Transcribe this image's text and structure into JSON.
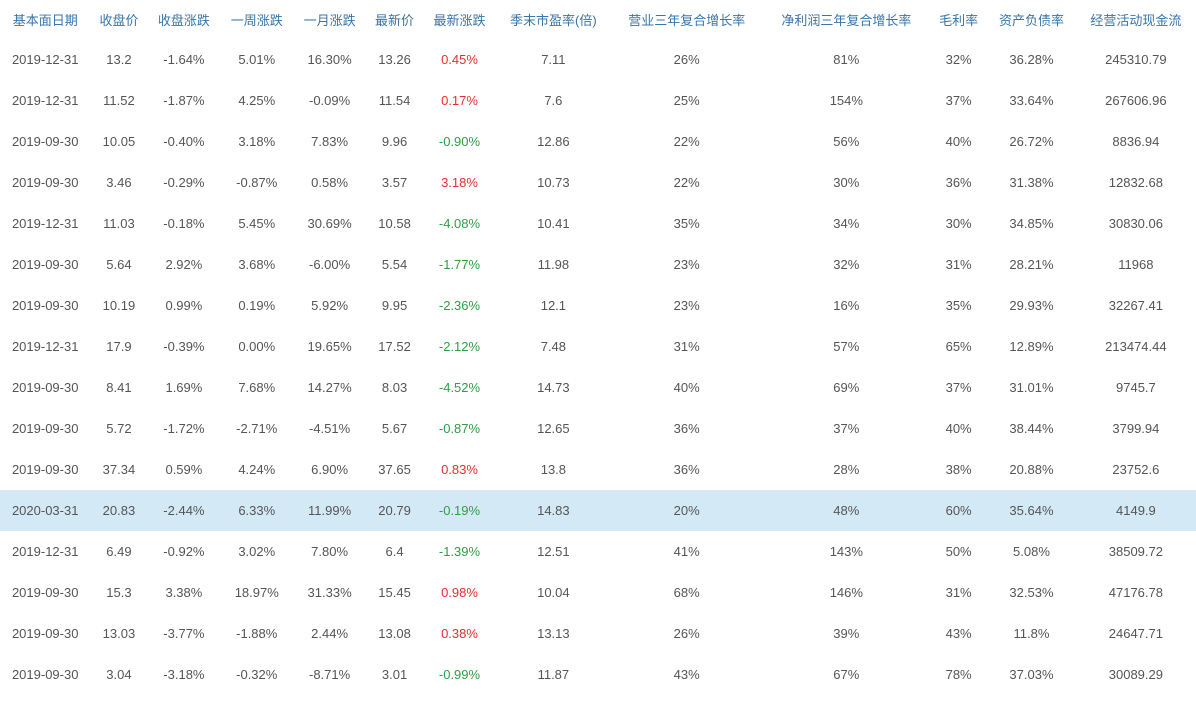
{
  "table": {
    "columns": [
      {
        "key": "date",
        "label": "基本面日期",
        "type": "text"
      },
      {
        "key": "close",
        "label": "收盘价",
        "type": "number"
      },
      {
        "key": "close_chg",
        "label": "收盘涨跌",
        "type": "percent"
      },
      {
        "key": "week_chg",
        "label": "一周涨跌",
        "type": "percent"
      },
      {
        "key": "month_chg",
        "label": "一月涨跌",
        "type": "percent"
      },
      {
        "key": "latest",
        "label": "最新价",
        "type": "number"
      },
      {
        "key": "latest_chg",
        "label": "最新涨跌",
        "type": "percent_colored"
      },
      {
        "key": "pe",
        "label": "季末市盈率(倍)",
        "type": "number"
      },
      {
        "key": "rev_growth",
        "label": "营业三年复合增长率",
        "type": "simple_percent"
      },
      {
        "key": "profit_growth",
        "label": "净利润三年复合增长率",
        "type": "simple_percent"
      },
      {
        "key": "gross_margin",
        "label": "毛利率",
        "type": "simple_percent"
      },
      {
        "key": "debt_ratio",
        "label": "资产负债率",
        "type": "percent"
      },
      {
        "key": "cash_flow",
        "label": "经营活动现金流",
        "type": "number"
      }
    ],
    "rows": [
      {
        "date": "2019-12-31",
        "close": "13.2",
        "close_chg": "-1.64%",
        "week_chg": "5.01%",
        "month_chg": "16.30%",
        "latest": "13.26",
        "latest_chg": "0.45%",
        "latest_chg_sign": "pos",
        "pe": "7.11",
        "rev_growth": "26%",
        "profit_growth": "81%",
        "gross_margin": "32%",
        "debt_ratio": "36.28%",
        "cash_flow": "245310.79",
        "highlighted": false
      },
      {
        "date": "2019-12-31",
        "close": "11.52",
        "close_chg": "-1.87%",
        "week_chg": "4.25%",
        "month_chg": "-0.09%",
        "latest": "11.54",
        "latest_chg": "0.17%",
        "latest_chg_sign": "pos",
        "pe": "7.6",
        "rev_growth": "25%",
        "profit_growth": "154%",
        "gross_margin": "37%",
        "debt_ratio": "33.64%",
        "cash_flow": "267606.96",
        "highlighted": false
      },
      {
        "date": "2019-09-30",
        "close": "10.05",
        "close_chg": "-0.40%",
        "week_chg": "3.18%",
        "month_chg": "7.83%",
        "latest": "9.96",
        "latest_chg": "-0.90%",
        "latest_chg_sign": "neg",
        "pe": "12.86",
        "rev_growth": "22%",
        "profit_growth": "56%",
        "gross_margin": "40%",
        "debt_ratio": "26.72%",
        "cash_flow": "8836.94",
        "highlighted": false
      },
      {
        "date": "2019-09-30",
        "close": "3.46",
        "close_chg": "-0.29%",
        "week_chg": "-0.87%",
        "month_chg": "0.58%",
        "latest": "3.57",
        "latest_chg": "3.18%",
        "latest_chg_sign": "pos",
        "pe": "10.73",
        "rev_growth": "22%",
        "profit_growth": "30%",
        "gross_margin": "36%",
        "debt_ratio": "31.38%",
        "cash_flow": "12832.68",
        "highlighted": false
      },
      {
        "date": "2019-12-31",
        "close": "11.03",
        "close_chg": "-0.18%",
        "week_chg": "5.45%",
        "month_chg": "30.69%",
        "latest": "10.58",
        "latest_chg": "-4.08%",
        "latest_chg_sign": "neg",
        "pe": "10.41",
        "rev_growth": "35%",
        "profit_growth": "34%",
        "gross_margin": "30%",
        "debt_ratio": "34.85%",
        "cash_flow": "30830.06",
        "highlighted": false
      },
      {
        "date": "2019-09-30",
        "close": "5.64",
        "close_chg": "2.92%",
        "week_chg": "3.68%",
        "month_chg": "-6.00%",
        "latest": "5.54",
        "latest_chg": "-1.77%",
        "latest_chg_sign": "neg",
        "pe": "11.98",
        "rev_growth": "23%",
        "profit_growth": "32%",
        "gross_margin": "31%",
        "debt_ratio": "28.21%",
        "cash_flow": "11968",
        "highlighted": false
      },
      {
        "date": "2019-09-30",
        "close": "10.19",
        "close_chg": "0.99%",
        "week_chg": "0.19%",
        "month_chg": "5.92%",
        "latest": "9.95",
        "latest_chg": "-2.36%",
        "latest_chg_sign": "neg",
        "pe": "12.1",
        "rev_growth": "23%",
        "profit_growth": "16%",
        "gross_margin": "35%",
        "debt_ratio": "29.93%",
        "cash_flow": "32267.41",
        "highlighted": false
      },
      {
        "date": "2019-12-31",
        "close": "17.9",
        "close_chg": "-0.39%",
        "week_chg": "0.00%",
        "month_chg": "19.65%",
        "latest": "17.52",
        "latest_chg": "-2.12%",
        "latest_chg_sign": "neg",
        "pe": "7.48",
        "rev_growth": "31%",
        "profit_growth": "57%",
        "gross_margin": "65%",
        "debt_ratio": "12.89%",
        "cash_flow": "213474.44",
        "highlighted": false
      },
      {
        "date": "2019-09-30",
        "close": "8.41",
        "close_chg": "1.69%",
        "week_chg": "7.68%",
        "month_chg": "14.27%",
        "latest": "8.03",
        "latest_chg": "-4.52%",
        "latest_chg_sign": "neg",
        "pe": "14.73",
        "rev_growth": "40%",
        "profit_growth": "69%",
        "gross_margin": "37%",
        "debt_ratio": "31.01%",
        "cash_flow": "9745.7",
        "highlighted": false
      },
      {
        "date": "2019-09-30",
        "close": "5.72",
        "close_chg": "-1.72%",
        "week_chg": "-2.71%",
        "month_chg": "-4.51%",
        "latest": "5.67",
        "latest_chg": "-0.87%",
        "latest_chg_sign": "neg",
        "pe": "12.65",
        "rev_growth": "36%",
        "profit_growth": "37%",
        "gross_margin": "40%",
        "debt_ratio": "38.44%",
        "cash_flow": "3799.94",
        "highlighted": false
      },
      {
        "date": "2019-09-30",
        "close": "37.34",
        "close_chg": "0.59%",
        "week_chg": "4.24%",
        "month_chg": "6.90%",
        "latest": "37.65",
        "latest_chg": "0.83%",
        "latest_chg_sign": "pos",
        "pe": "13.8",
        "rev_growth": "36%",
        "profit_growth": "28%",
        "gross_margin": "38%",
        "debt_ratio": "20.88%",
        "cash_flow": "23752.6",
        "highlighted": false
      },
      {
        "date": "2020-03-31",
        "close": "20.83",
        "close_chg": "-2.44%",
        "week_chg": "6.33%",
        "month_chg": "11.99%",
        "latest": "20.79",
        "latest_chg": "-0.19%",
        "latest_chg_sign": "neg",
        "pe": "14.83",
        "rev_growth": "20%",
        "profit_growth": "48%",
        "gross_margin": "60%",
        "debt_ratio": "35.64%",
        "cash_flow": "4149.9",
        "highlighted": true
      },
      {
        "date": "2019-12-31",
        "close": "6.49",
        "close_chg": "-0.92%",
        "week_chg": "3.02%",
        "month_chg": "7.80%",
        "latest": "6.4",
        "latest_chg": "-1.39%",
        "latest_chg_sign": "neg",
        "pe": "12.51",
        "rev_growth": "41%",
        "profit_growth": "143%",
        "gross_margin": "50%",
        "debt_ratio": "5.08%",
        "cash_flow": "38509.72",
        "highlighted": false
      },
      {
        "date": "2019-09-30",
        "close": "15.3",
        "close_chg": "3.38%",
        "week_chg": "18.97%",
        "month_chg": "31.33%",
        "latest": "15.45",
        "latest_chg": "0.98%",
        "latest_chg_sign": "pos",
        "pe": "10.04",
        "rev_growth": "68%",
        "profit_growth": "146%",
        "gross_margin": "31%",
        "debt_ratio": "32.53%",
        "cash_flow": "47176.78",
        "highlighted": false
      },
      {
        "date": "2019-09-30",
        "close": "13.03",
        "close_chg": "-3.77%",
        "week_chg": "-1.88%",
        "month_chg": "2.44%",
        "latest": "13.08",
        "latest_chg": "0.38%",
        "latest_chg_sign": "pos",
        "pe": "13.13",
        "rev_growth": "26%",
        "profit_growth": "39%",
        "gross_margin": "43%",
        "debt_ratio": "11.8%",
        "cash_flow": "24647.71",
        "highlighted": false
      },
      {
        "date": "2019-09-30",
        "close": "3.04",
        "close_chg": "-3.18%",
        "week_chg": "-0.32%",
        "month_chg": "-8.71%",
        "latest": "3.01",
        "latest_chg": "-0.99%",
        "latest_chg_sign": "neg",
        "pe": "11.87",
        "rev_growth": "43%",
        "profit_growth": "67%",
        "gross_margin": "78%",
        "debt_ratio": "37.03%",
        "cash_flow": "30089.29",
        "highlighted": false
      }
    ],
    "colors": {
      "header_text": "#3875a8",
      "body_text": "#555555",
      "positive": "#e03131",
      "negative": "#2f9e44",
      "highlight_row": "#d3e9f5",
      "background": "#ffffff"
    }
  }
}
